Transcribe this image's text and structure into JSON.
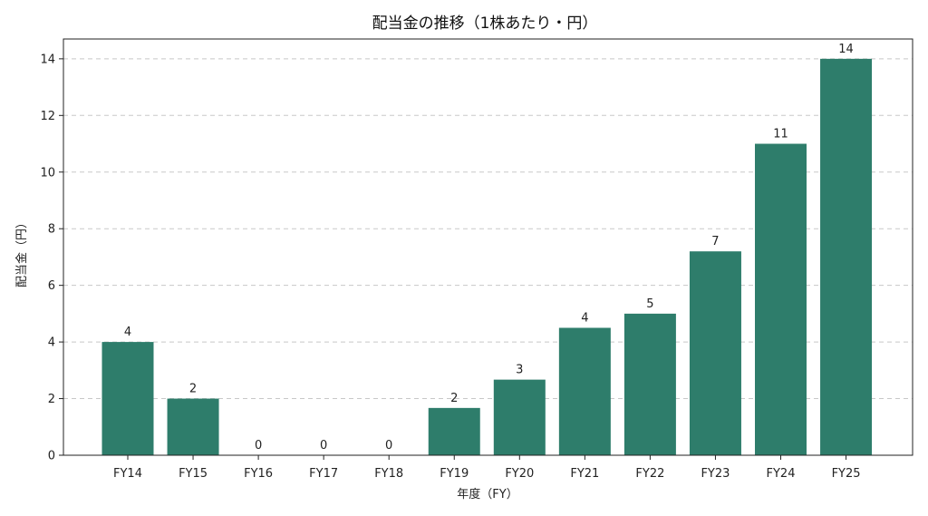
{
  "chart_data": {
    "type": "bar",
    "title": "配当金の推移（1株あたり・円）",
    "xlabel": "年度（FY）",
    "ylabel": "配当金（円）",
    "categories": [
      "FY14",
      "FY15",
      "FY16",
      "FY17",
      "FY18",
      "FY19",
      "FY20",
      "FY21",
      "FY22",
      "FY23",
      "FY24",
      "FY25"
    ],
    "values": [
      4,
      2,
      0,
      0,
      0,
      1.67,
      2.67,
      4.5,
      5,
      7.2,
      11,
      14
    ],
    "data_labels": [
      "4",
      "2",
      "0",
      "0",
      "0",
      "2",
      "3",
      "4",
      "5",
      "7",
      "11",
      "14"
    ],
    "yticks": [
      0,
      2,
      4,
      6,
      8,
      10,
      12,
      14
    ],
    "ylim": [
      0,
      14.7
    ],
    "grid": "horizontal dashed",
    "bar_color": "#2e7d6b"
  }
}
